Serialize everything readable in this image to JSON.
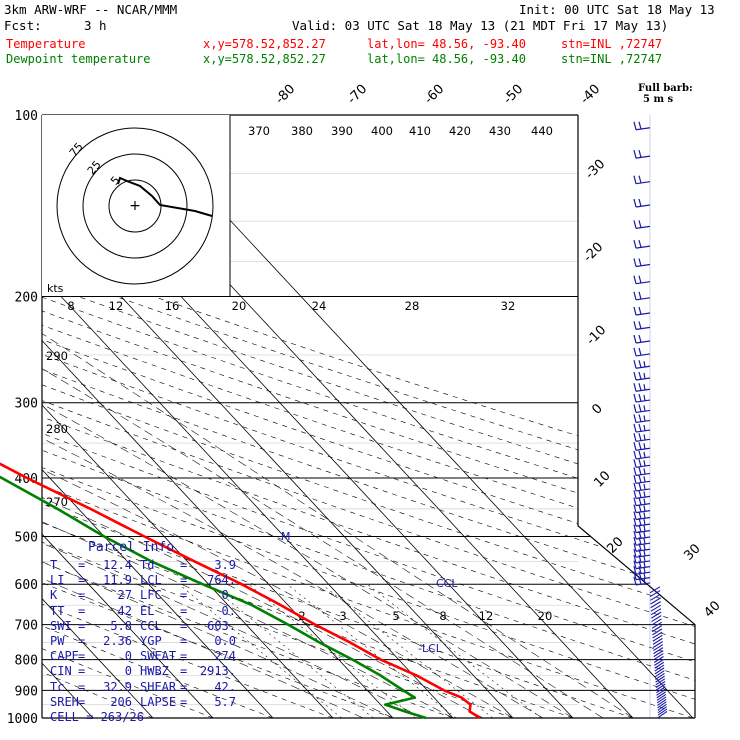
{
  "header": {
    "model": "3km ARW-WRF -- NCAR/MMM",
    "init": "Init: 00 UTC Sat 18 May 13",
    "fcst_label": "Fcst:",
    "fcst_value": "3 h",
    "valid": "Valid: 03 UTC Sat 18 May 13 (21 MDT Fri 17 May 13)",
    "temp_line": {
      "name": "Temperature",
      "xy": "x,y=578.52,852.27",
      "latlon": "lat,lon= 48.56, -93.40",
      "stn": "stn=INL ,72747"
    },
    "dew_line": {
      "name": "Dewpoint temperature",
      "xy": "x,y=578.52,852.27",
      "latlon": "lat,lon= 48.56, -93.40",
      "stn": "stn=INL ,72747"
    }
  },
  "colors": {
    "temperature": "#ff0000",
    "dewpoint": "#008000",
    "wind": "#1a1aa8",
    "grid": "#000000"
  },
  "barb_note": {
    "line1": "Full barb:",
    "line2": "5 m s"
  },
  "hodograph": {
    "units": "kts",
    "rings": [
      "5",
      "25",
      "75"
    ]
  },
  "parcel_info": {
    "title": "Parcel Info",
    "rows": [
      [
        "T",
        "12.4",
        "Td",
        "3.9"
      ],
      [
        "LI",
        "11.9",
        "LCL",
        "764."
      ],
      [
        "K",
        "27",
        "LFC",
        "0."
      ],
      [
        "TT",
        "42",
        "EL",
        "0."
      ],
      [
        "SWI",
        "5.8",
        "CCL",
        "603."
      ],
      [
        "PW",
        "2.36",
        "YGP",
        "0.0"
      ],
      [
        "CAPE",
        "0",
        "SWEAT",
        "274"
      ],
      [
        "CIN",
        "0",
        "HWBZ",
        "2913."
      ],
      [
        "Tc",
        "32.9",
        "SHEAR",
        "42."
      ],
      [
        "SREH",
        "206",
        "LAPSE",
        "5.7"
      ]
    ],
    "cell": "CELL = 263/26"
  },
  "chart_data": {
    "type": "line",
    "title": "",
    "y_axis": {
      "scale": "log-pressure",
      "unit": "hPa",
      "ylim": [
        1000,
        100
      ],
      "ticks": [
        100,
        200,
        300,
        400,
        500,
        600,
        700,
        800,
        900,
        1000
      ]
    },
    "isotherm_labels": [
      "-80",
      "-70",
      "-60",
      "-50",
      "-40",
      "-30",
      "-20",
      "-10",
      "0",
      "10",
      "20",
      "30",
      "40"
    ],
    "dry_adiabat_labels": [
      "370",
      "380",
      "390",
      "400",
      "410",
      "420",
      "430",
      "440",
      "290",
      "280",
      "270"
    ],
    "moist_adiabat_labels": [
      "8",
      "12",
      "16",
      "20",
      "24",
      "28",
      "32"
    ],
    "mixing_ratio_labels": [
      "2",
      "3",
      "5",
      "8",
      "12",
      "20"
    ],
    "annotations": [
      "M",
      "-LCL",
      "CCL"
    ],
    "series": [
      {
        "name": "Temperature",
        "color": "#ff0000",
        "points": [
          [
            1000,
            14.5
          ],
          [
            975,
            13.8
          ],
          [
            950,
            15.0
          ],
          [
            925,
            14.6
          ],
          [
            900,
            12.8
          ],
          [
            850,
            10.5
          ],
          [
            800,
            7.0
          ],
          [
            750,
            4.6
          ],
          [
            700,
            1.5
          ],
          [
            650,
            -1.2
          ],
          [
            600,
            -4.5
          ],
          [
            550,
            -8.8
          ],
          [
            500,
            -13.3
          ],
          [
            450,
            -18.0
          ],
          [
            400,
            -23.8
          ],
          [
            350,
            -29.5
          ],
          [
            300,
            -36.0
          ],
          [
            250,
            -44.5
          ],
          [
            225,
            -49.0
          ],
          [
            200,
            -52.5
          ],
          [
            175,
            -51.0
          ],
          [
            150,
            -50.0
          ],
          [
            125,
            -50.8
          ],
          [
            100,
            -54.5
          ]
        ]
      },
      {
        "name": "Dewpoint temperature",
        "color": "#008000",
        "points": [
          [
            1000,
            5.5
          ],
          [
            975,
            3.0
          ],
          [
            950,
            0.8
          ],
          [
            925,
            6.8
          ],
          [
            900,
            6.0
          ],
          [
            850,
            4.5
          ],
          [
            800,
            2.3
          ],
          [
            750,
            -0.5
          ],
          [
            700,
            -3.0
          ],
          [
            650,
            -6.0
          ],
          [
            600,
            -11.0
          ],
          [
            550,
            -16.0
          ],
          [
            500,
            -20.0
          ],
          [
            450,
            -23.5
          ],
          [
            400,
            -28.0
          ],
          [
            350,
            -33.0
          ],
          [
            300,
            -42.5
          ],
          [
            250,
            -55.0
          ],
          [
            200,
            -63.0
          ],
          [
            175,
            -66.0
          ],
          [
            150,
            -69.0
          ],
          [
            125,
            -72.0
          ],
          [
            100,
            -76.0
          ]
        ]
      }
    ],
    "wind_profile": [
      {
        "p": 1000,
        "spd": 5,
        "dir": 200
      },
      {
        "p": 950,
        "spd": 10,
        "dir": 210
      },
      {
        "p": 900,
        "spd": 10,
        "dir": 230
      },
      {
        "p": 850,
        "spd": 10,
        "dir": 240
      },
      {
        "p": 800,
        "spd": 15,
        "dir": 250
      },
      {
        "p": 700,
        "spd": 15,
        "dir": 260
      },
      {
        "p": 600,
        "spd": 20,
        "dir": 270
      },
      {
        "p": 500,
        "spd": 25,
        "dir": 270
      },
      {
        "p": 400,
        "spd": 30,
        "dir": 270
      },
      {
        "p": 300,
        "spd": 35,
        "dir": 270
      },
      {
        "p": 250,
        "spd": 35,
        "dir": 270
      },
      {
        "p": 200,
        "spd": 35,
        "dir": 270
      },
      {
        "p": 150,
        "spd": 35,
        "dir": 270
      },
      {
        "p": 100,
        "spd": 35,
        "dir": 270
      }
    ]
  }
}
